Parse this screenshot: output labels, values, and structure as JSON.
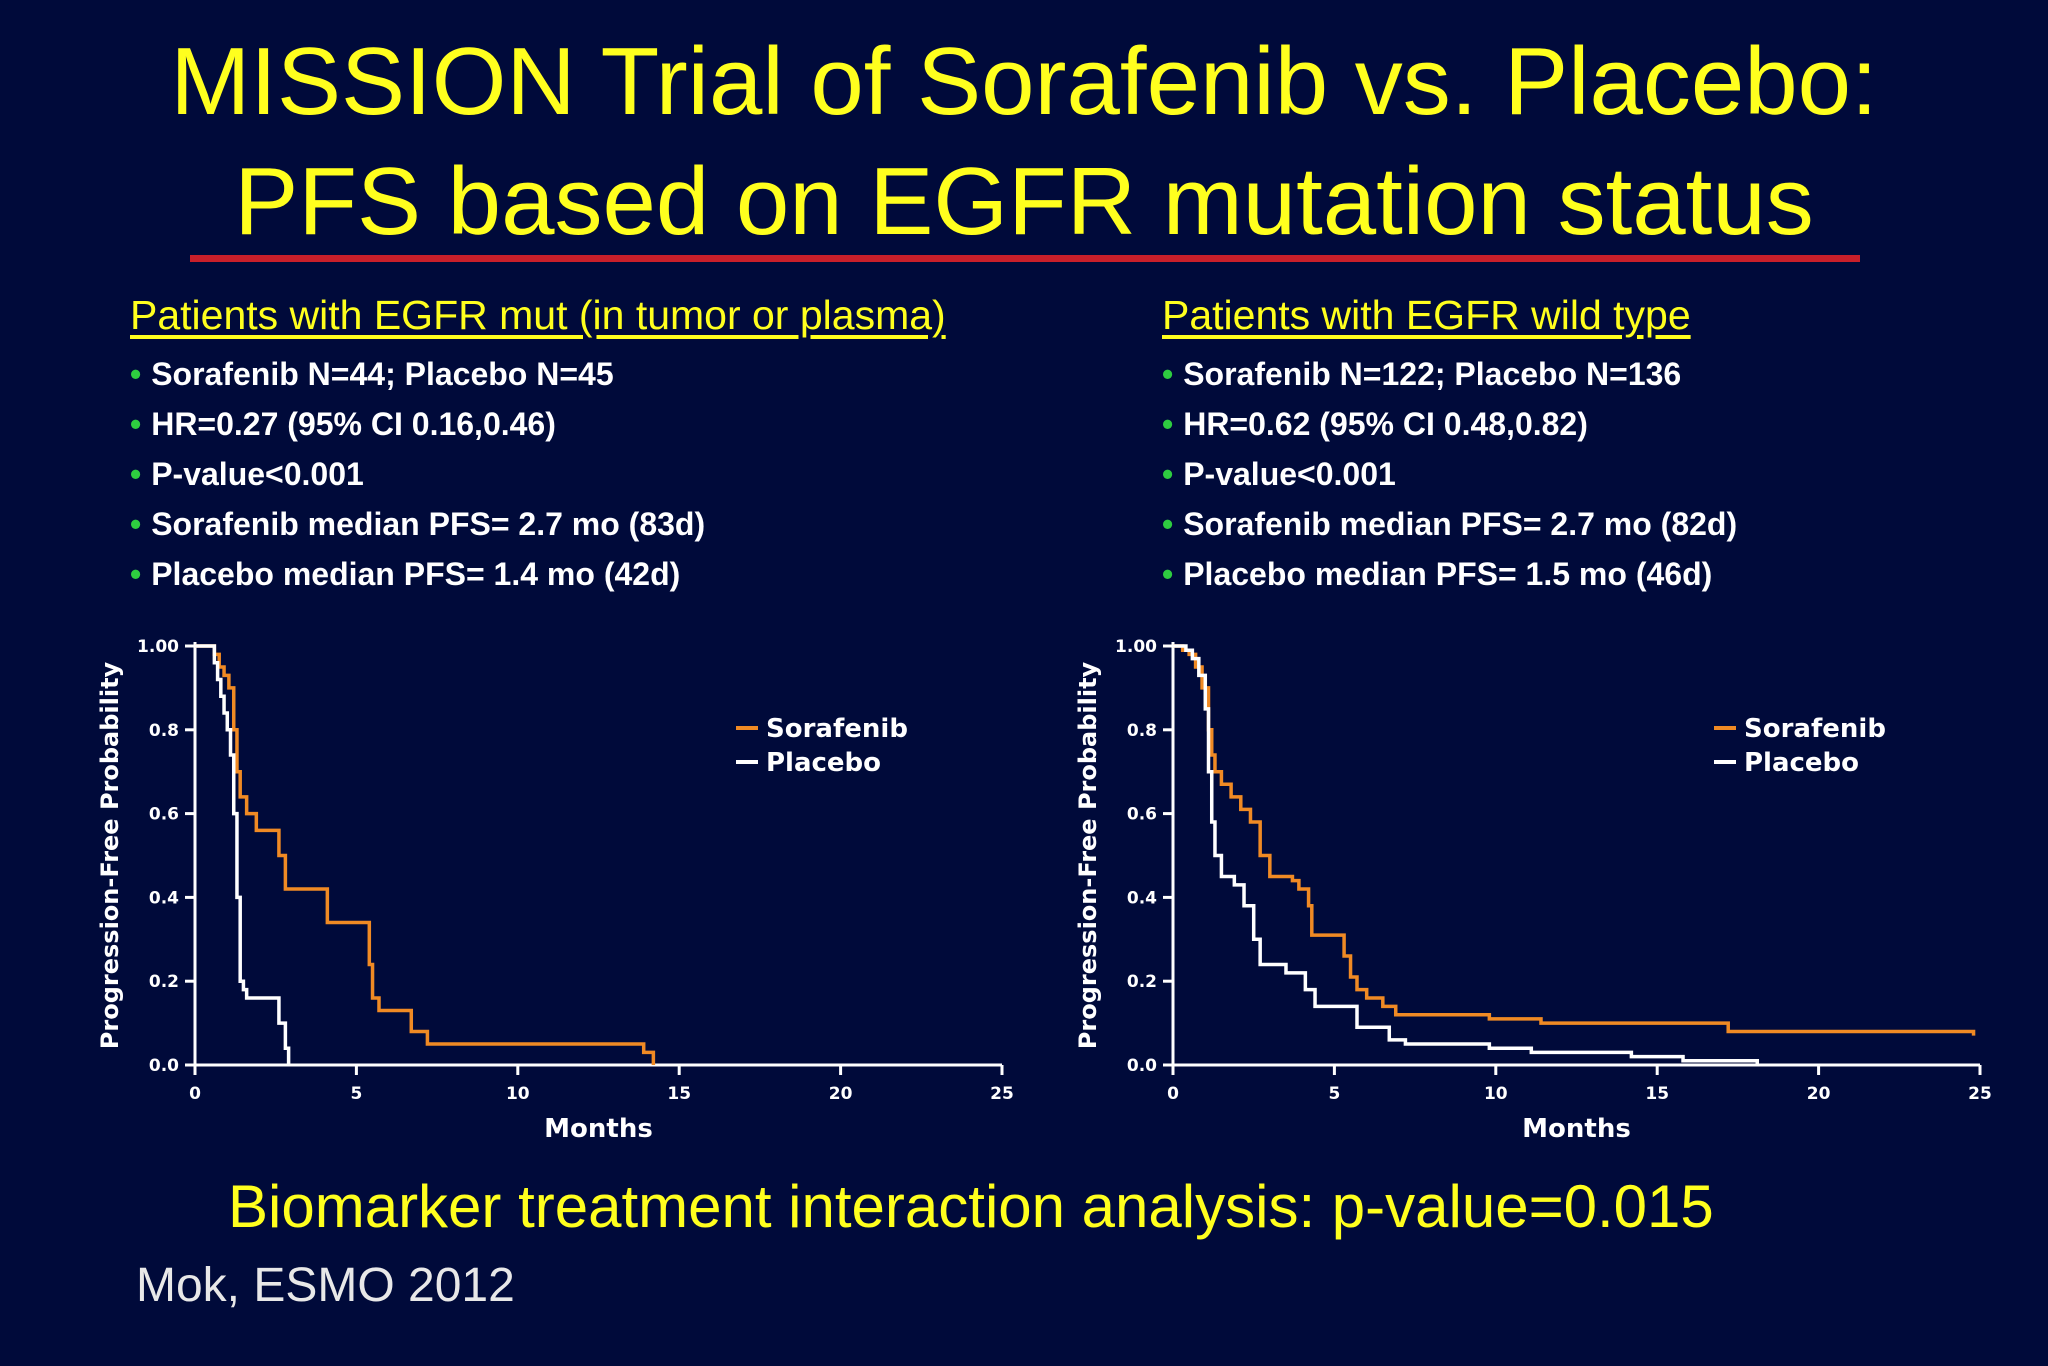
{
  "slide": {
    "title_line1": "MISSION Trial of Sorafenib vs. Placebo:",
    "title_line2": "PFS based on EGFR mutation status",
    "footer": "Biomarker treatment interaction analysis: p-value=0.015",
    "citation": "Mok, ESMO 2012",
    "colors": {
      "background": "#000a3a",
      "title": "#ffff1e",
      "rule": "#c81f2a",
      "bullet": "#2ecc40"
    }
  },
  "panels": [
    {
      "heading": "Patients with EGFR mut (in tumor or plasma)",
      "bullets": [
        "Sorafenib N=44; Placebo N=45",
        "HR=0.27 (95% CI 0.16,0.46)",
        "P-value<0.001",
        "Sorafenib median PFS= 2.7 mo (83d)",
        "Placebo median PFS= 1.4 mo (42d)"
      ]
    },
    {
      "heading": "Patients with EGFR wild type",
      "bullets": [
        "Sorafenib N=122; Placebo N=136",
        "HR=0.62 (95% CI 0.48,0.82)",
        "P-value<0.001",
        "Sorafenib median PFS= 2.7 mo (82d)",
        "Placebo median PFS= 1.5 mo (46d)"
      ]
    }
  ],
  "chart_data": [
    {
      "type": "line",
      "step": true,
      "xlabel": "Months",
      "ylabel": "Progression-Free Probability",
      "xlim": [
        0,
        25
      ],
      "ylim": [
        0,
        1
      ],
      "xticks": [
        "0",
        "5",
        "10",
        "15",
        "20",
        "25"
      ],
      "yticks": [
        "0.0",
        "0.2",
        "0.4",
        "0.6",
        "0.8",
        "1.00"
      ],
      "legend_position": "top-right",
      "series": [
        {
          "name": "Sorafenib",
          "color": "#f08a24",
          "x": [
            0,
            0.6,
            0.75,
            0.9,
            1.05,
            1.2,
            1.3,
            1.4,
            1.6,
            1.9,
            2.6,
            2.8,
            4.1,
            5.4,
            5.5,
            5.7,
            6.7,
            7.2,
            13.9,
            14.2
          ],
          "y": [
            1.0,
            0.98,
            0.95,
            0.93,
            0.9,
            0.8,
            0.7,
            0.64,
            0.6,
            0.56,
            0.5,
            0.42,
            0.34,
            0.24,
            0.16,
            0.13,
            0.08,
            0.05,
            0.03,
            0.0
          ]
        },
        {
          "name": "Placebo",
          "color": "#ffffff",
          "x": [
            0,
            0.6,
            0.7,
            0.8,
            0.9,
            1.0,
            1.1,
            1.2,
            1.3,
            1.4,
            1.5,
            1.6,
            2.6,
            2.8,
            2.9
          ],
          "y": [
            1.0,
            0.96,
            0.92,
            0.88,
            0.84,
            0.8,
            0.74,
            0.6,
            0.4,
            0.2,
            0.18,
            0.16,
            0.1,
            0.04,
            0.0
          ]
        }
      ]
    },
    {
      "type": "line",
      "step": true,
      "xlabel": "Months",
      "ylabel": "Progression-Free Probability",
      "xlim": [
        0,
        25
      ],
      "ylim": [
        0,
        1
      ],
      "xticks": [
        "0",
        "5",
        "10",
        "15",
        "20",
        "25"
      ],
      "yticks": [
        "0.0",
        "0.2",
        "0.4",
        "0.6",
        "0.8",
        "1.00"
      ],
      "legend_position": "top-right",
      "series": [
        {
          "name": "Sorafenib",
          "color": "#f08a24",
          "x": [
            0,
            0.3,
            0.5,
            0.7,
            0.9,
            1.1,
            1.2,
            1.3,
            1.5,
            1.8,
            2.1,
            2.4,
            2.7,
            3.0,
            3.7,
            3.9,
            4.2,
            4.3,
            5.3,
            5.5,
            5.7,
            6.0,
            6.5,
            6.9,
            9.8,
            11.4,
            17.2,
            24.8
          ],
          "y": [
            1.0,
            0.99,
            0.98,
            0.95,
            0.9,
            0.8,
            0.74,
            0.7,
            0.67,
            0.64,
            0.61,
            0.58,
            0.5,
            0.45,
            0.44,
            0.42,
            0.38,
            0.31,
            0.26,
            0.21,
            0.18,
            0.16,
            0.14,
            0.12,
            0.11,
            0.1,
            0.08,
            0.07
          ]
        },
        {
          "name": "Placebo",
          "color": "#ffffff",
          "x": [
            0,
            0.4,
            0.6,
            0.8,
            1.0,
            1.1,
            1.2,
            1.3,
            1.5,
            1.9,
            2.2,
            2.5,
            2.7,
            3.5,
            4.1,
            4.4,
            5.7,
            6.7,
            7.2,
            9.8,
            11.1,
            14.2,
            15.8,
            18.1
          ],
          "y": [
            1.0,
            0.99,
            0.97,
            0.93,
            0.85,
            0.7,
            0.58,
            0.5,
            0.45,
            0.43,
            0.38,
            0.3,
            0.24,
            0.22,
            0.18,
            0.14,
            0.09,
            0.06,
            0.05,
            0.04,
            0.03,
            0.02,
            0.01,
            0.0
          ]
        }
      ]
    }
  ]
}
